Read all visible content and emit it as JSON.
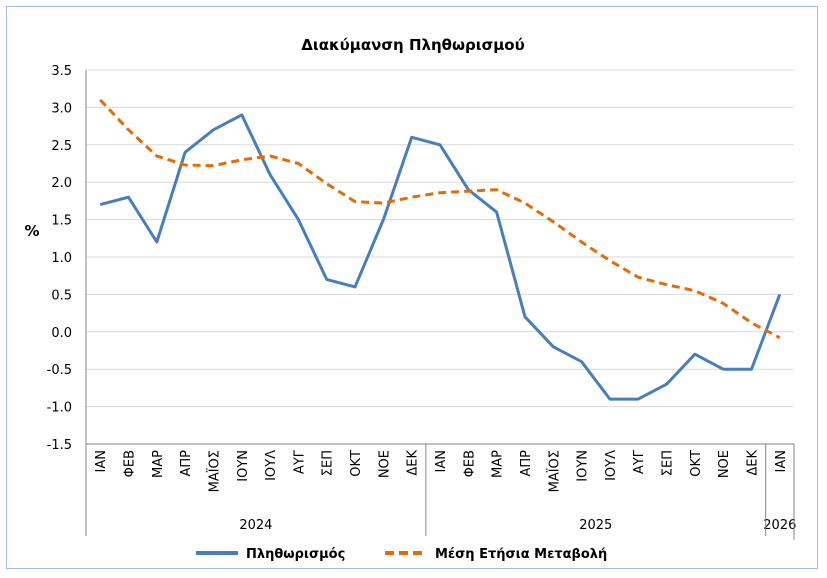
{
  "chart_data": {
    "type": "line",
    "title": "Διακύμανση Πληθωρισμού",
    "ylabel": "%",
    "xlabel": "",
    "ylim": [
      -1.5,
      3.5
    ],
    "yticks": [
      "3.5",
      "3.0",
      "2.5",
      "2.0",
      "1.5",
      "1.0",
      "0.5",
      "0.0",
      "-0.5",
      "-1.0",
      "-1.5"
    ],
    "grid": true,
    "legend_position": "bottom",
    "categories": [
      "ΙΑΝ",
      "ΦΕΒ",
      "ΜΑΡ",
      "ΑΠΡ",
      "ΜΑΪΟΣ",
      "ΙΟΥΝ",
      "ΙΟΥΛ",
      "ΑΥΓ",
      "ΣΕΠ",
      "ΟΚΤ",
      "ΝΟΕ",
      "ΔΕΚ",
      "ΙΑΝ",
      "ΦΕΒ",
      "ΜΑΡ",
      "ΑΠΡ",
      "ΜΑΪΟΣ",
      "ΙΟΥΝ",
      "ΙΟΥΛ",
      "ΑΥΓ",
      "ΣΕΠ",
      "ΟΚΤ",
      "ΝΟΕ",
      "ΔΕΚ",
      "ΙΑΝ"
    ],
    "year_groups": [
      {
        "label": "2024",
        "count": 12
      },
      {
        "label": "2025",
        "count": 12
      },
      {
        "label": "2026",
        "count": 1
      }
    ],
    "series": [
      {
        "name": "Πληθωρισμός",
        "color": "#4a7ebb",
        "dash": false,
        "values": [
          1.7,
          1.8,
          1.2,
          2.4,
          2.7,
          2.9,
          2.1,
          1.5,
          0.7,
          0.6,
          1.5,
          2.6,
          2.5,
          1.9,
          1.6,
          0.2,
          -0.2,
          -0.4,
          -0.9,
          -0.9,
          -0.7,
          -0.3,
          -0.5,
          -0.5,
          0.5
        ]
      },
      {
        "name": "Μέση Ετήσια Μεταβολή",
        "color": "#e36c0a",
        "dash": true,
        "values": [
          3.1,
          2.7,
          2.35,
          2.23,
          2.22,
          2.3,
          2.35,
          2.25,
          1.98,
          1.74,
          1.72,
          1.8,
          1.86,
          1.88,
          1.9,
          1.72,
          1.47,
          1.2,
          0.95,
          0.73,
          0.63,
          0.55,
          0.38,
          0.12,
          -0.08
        ]
      }
    ]
  }
}
